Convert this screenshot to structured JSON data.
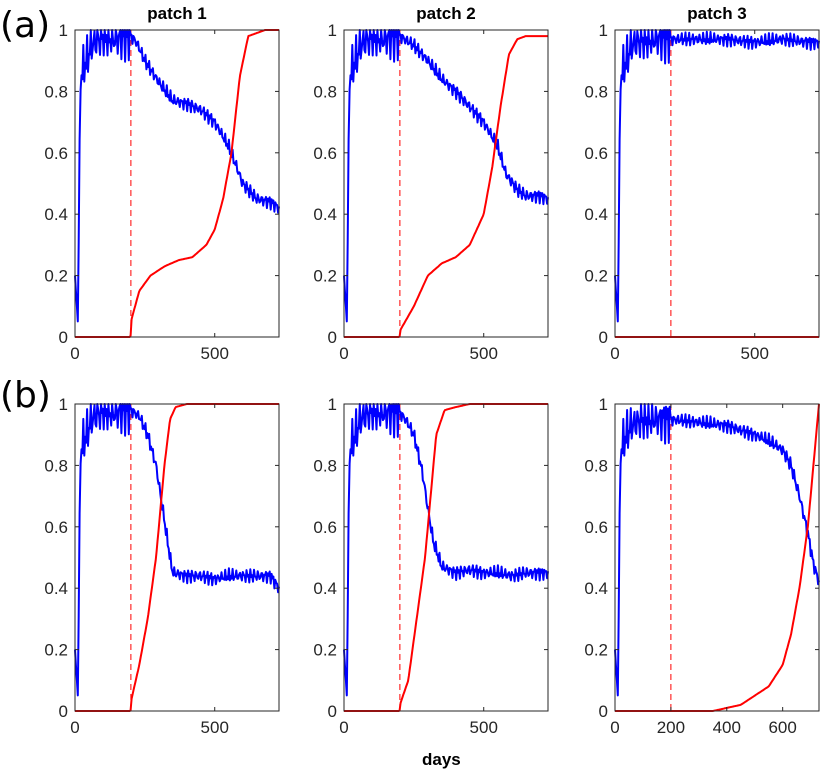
{
  "figure": {
    "row_labels": [
      "(a)",
      "(b)"
    ],
    "col_titles": [
      "patch 1",
      "patch 2",
      "patch 3"
    ],
    "xlabel": "days",
    "colors": {
      "blue": "#0000ff",
      "red": "#ff0000",
      "dashed": "#ff0000"
    }
  },
  "chart_data": [
    {
      "type": "line",
      "row": "(a)",
      "col": "patch 1",
      "title": "patch 1",
      "xlim": [
        0,
        730
      ],
      "ylim": [
        0,
        1
      ],
      "xticks": [
        0,
        500
      ],
      "yticks": [
        0,
        0.2,
        0.4,
        0.6,
        0.8,
        1
      ],
      "vline_x": 200,
      "series": [
        {
          "color": "#0000ff",
          "x": [
            0,
            10,
            20,
            40,
            60,
            100,
            150,
            200,
            220,
            250,
            300,
            350,
            400,
            450,
            500,
            550,
            580,
            600,
            650,
            700,
            730
          ],
          "y": [
            0.2,
            0.05,
            0.85,
            0.9,
            0.95,
            0.98,
            0.97,
            0.98,
            0.96,
            0.9,
            0.83,
            0.77,
            0.76,
            0.74,
            0.7,
            0.62,
            0.55,
            0.5,
            0.45,
            0.44,
            0.42
          ]
        },
        {
          "color": "#ff0000",
          "x": [
            0,
            199,
            200,
            230,
            270,
            320,
            370,
            420,
            470,
            500,
            530,
            560,
            590,
            620,
            650,
            680,
            730
          ],
          "y": [
            0,
            0,
            0.05,
            0.15,
            0.2,
            0.23,
            0.25,
            0.26,
            0.3,
            0.35,
            0.45,
            0.6,
            0.85,
            0.98,
            0.99,
            1.0,
            1.0
          ]
        }
      ]
    },
    {
      "type": "line",
      "row": "(a)",
      "col": "patch 2",
      "title": "patch 2",
      "xlim": [
        0,
        730
      ],
      "ylim": [
        0,
        1
      ],
      "xticks": [
        0,
        500
      ],
      "yticks": [
        0,
        0.2,
        0.4,
        0.6,
        0.8,
        1
      ],
      "vline_x": 200,
      "series": [
        {
          "color": "#0000ff",
          "x": [
            0,
            10,
            20,
            40,
            60,
            100,
            150,
            200,
            250,
            300,
            350,
            400,
            450,
            500,
            550,
            580,
            620,
            650,
            700,
            730
          ],
          "y": [
            0.2,
            0.05,
            0.85,
            0.9,
            0.95,
            0.98,
            0.97,
            0.98,
            0.95,
            0.9,
            0.84,
            0.8,
            0.75,
            0.7,
            0.62,
            0.53,
            0.48,
            0.46,
            0.46,
            0.45
          ]
        },
        {
          "color": "#ff0000",
          "x": [
            0,
            199,
            200,
            250,
            300,
            350,
            400,
            450,
            500,
            530,
            560,
            590,
            620,
            650,
            700,
            730
          ],
          "y": [
            0,
            0,
            0.02,
            0.1,
            0.2,
            0.24,
            0.26,
            0.3,
            0.4,
            0.55,
            0.75,
            0.92,
            0.97,
            0.98,
            0.98,
            0.98
          ]
        }
      ]
    },
    {
      "type": "line",
      "row": "(a)",
      "col": "patch 3",
      "title": "patch 3",
      "xlim": [
        0,
        730
      ],
      "ylim": [
        0,
        1
      ],
      "xticks": [
        0,
        500
      ],
      "yticks": [
        0,
        0.2,
        0.4,
        0.6,
        0.8,
        1
      ],
      "vline_x": 200,
      "series": [
        {
          "color": "#0000ff",
          "x": [
            0,
            10,
            20,
            40,
            60,
            100,
            200,
            300,
            400,
            500,
            600,
            700,
            730
          ],
          "y": [
            0.2,
            0.05,
            0.85,
            0.9,
            0.95,
            0.97,
            0.97,
            0.97,
            0.97,
            0.96,
            0.97,
            0.96,
            0.96
          ]
        },
        {
          "color": "#ff0000",
          "x": [
            0,
            730
          ],
          "y": [
            0,
            0
          ]
        }
      ]
    },
    {
      "type": "line",
      "row": "(b)",
      "col": "patch 1",
      "xlim": [
        0,
        730
      ],
      "ylim": [
        0,
        1
      ],
      "xticks": [
        0,
        500
      ],
      "yticks": [
        0,
        0.2,
        0.4,
        0.6,
        0.8,
        1
      ],
      "vline_x": 200,
      "series": [
        {
          "color": "#0000ff",
          "x": [
            0,
            10,
            20,
            40,
            60,
            100,
            150,
            200,
            230,
            260,
            290,
            320,
            340,
            350,
            400,
            450,
            500,
            550,
            600,
            650,
            700,
            730
          ],
          "y": [
            0.2,
            0.05,
            0.85,
            0.9,
            0.95,
            0.98,
            0.97,
            0.98,
            0.96,
            0.9,
            0.8,
            0.62,
            0.5,
            0.45,
            0.44,
            0.44,
            0.43,
            0.44,
            0.44,
            0.44,
            0.44,
            0.4
          ]
        },
        {
          "color": "#ff0000",
          "x": [
            0,
            199,
            200,
            230,
            260,
            290,
            320,
            340,
            360,
            400,
            500,
            600,
            730
          ],
          "y": [
            0,
            0,
            0.03,
            0.15,
            0.3,
            0.5,
            0.8,
            0.95,
            0.99,
            1.0,
            1.0,
            1.0,
            1.0
          ]
        }
      ]
    },
    {
      "type": "line",
      "row": "(b)",
      "col": "patch 2",
      "xlim": [
        0,
        730
      ],
      "ylim": [
        0,
        1
      ],
      "xticks": [
        0,
        500
      ],
      "yticks": [
        0,
        0.2,
        0.4,
        0.6,
        0.8,
        1
      ],
      "vline_x": 200,
      "series": [
        {
          "color": "#0000ff",
          "x": [
            0,
            10,
            20,
            40,
            60,
            100,
            150,
            200,
            220,
            250,
            280,
            300,
            320,
            350,
            400,
            450,
            500,
            550,
            600,
            650,
            700,
            730
          ],
          "y": [
            0.2,
            0.05,
            0.85,
            0.9,
            0.95,
            0.98,
            0.97,
            0.97,
            0.95,
            0.9,
            0.78,
            0.66,
            0.55,
            0.47,
            0.45,
            0.46,
            0.45,
            0.45,
            0.44,
            0.45,
            0.45,
            0.45
          ]
        },
        {
          "color": "#ff0000",
          "x": [
            0,
            199,
            200,
            230,
            260,
            290,
            310,
            330,
            360,
            400,
            450,
            500,
            600,
            730
          ],
          "y": [
            0,
            0,
            0.02,
            0.1,
            0.3,
            0.5,
            0.7,
            0.9,
            0.98,
            0.99,
            1.0,
            1.0,
            1.0,
            1.0
          ]
        }
      ]
    },
    {
      "type": "line",
      "row": "(b)",
      "col": "patch 3",
      "xlim": [
        0,
        730
      ],
      "ylim": [
        0,
        1
      ],
      "xticks": [
        0,
        200,
        400,
        600
      ],
      "yticks": [
        0,
        0.2,
        0.4,
        0.6,
        0.8,
        1
      ],
      "vline_x": 200,
      "series": [
        {
          "color": "#0000ff",
          "x": [
            0,
            10,
            20,
            40,
            60,
            100,
            200,
            300,
            400,
            500,
            550,
            600,
            630,
            660,
            690,
            710,
            730
          ],
          "y": [
            0.2,
            0.05,
            0.85,
            0.9,
            0.93,
            0.95,
            0.95,
            0.94,
            0.93,
            0.9,
            0.88,
            0.85,
            0.8,
            0.7,
            0.58,
            0.48,
            0.42
          ]
        },
        {
          "color": "#ff0000",
          "x": [
            0,
            350,
            400,
            450,
            500,
            550,
            600,
            630,
            660,
            690,
            710,
            730
          ],
          "y": [
            0,
            0,
            0.01,
            0.02,
            0.05,
            0.08,
            0.15,
            0.25,
            0.4,
            0.6,
            0.8,
            1.0
          ]
        }
      ]
    }
  ]
}
